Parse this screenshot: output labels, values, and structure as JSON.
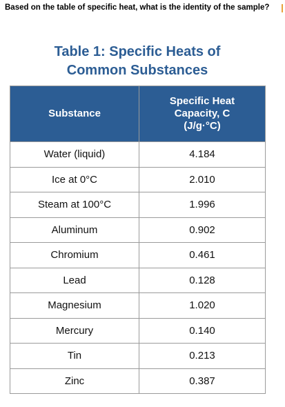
{
  "question": "Based on the table of specific heat, what is the identity of the sample?",
  "table": {
    "title_line1": "Table 1: Specific Heats of",
    "title_line2": "Common Substances",
    "header": {
      "substance": "Substance",
      "capacity_line1": "Specific Heat",
      "capacity_line2": "Capacity, C",
      "capacity_line3": "(J/g·°C)"
    },
    "rows": [
      {
        "substance": "Water (liquid)",
        "value": "4.184"
      },
      {
        "substance": "Ice at 0°C",
        "value": "2.010"
      },
      {
        "substance": "Steam at 100°C",
        "value": "1.996"
      },
      {
        "substance": "Aluminum",
        "value": "0.902"
      },
      {
        "substance": "Chromium",
        "value": "0.461"
      },
      {
        "substance": "Lead",
        "value": "0.128"
      },
      {
        "substance": "Magnesium",
        "value": "1.020"
      },
      {
        "substance": "Mercury",
        "value": "0.140"
      },
      {
        "substance": "Tin",
        "value": "0.213"
      },
      {
        "substance": "Zinc",
        "value": "0.387"
      }
    ]
  },
  "colors": {
    "title": "#2c5d94",
    "header_background": "#2c5d94",
    "header_text": "#ffffff",
    "border": "#9a9a9a"
  }
}
